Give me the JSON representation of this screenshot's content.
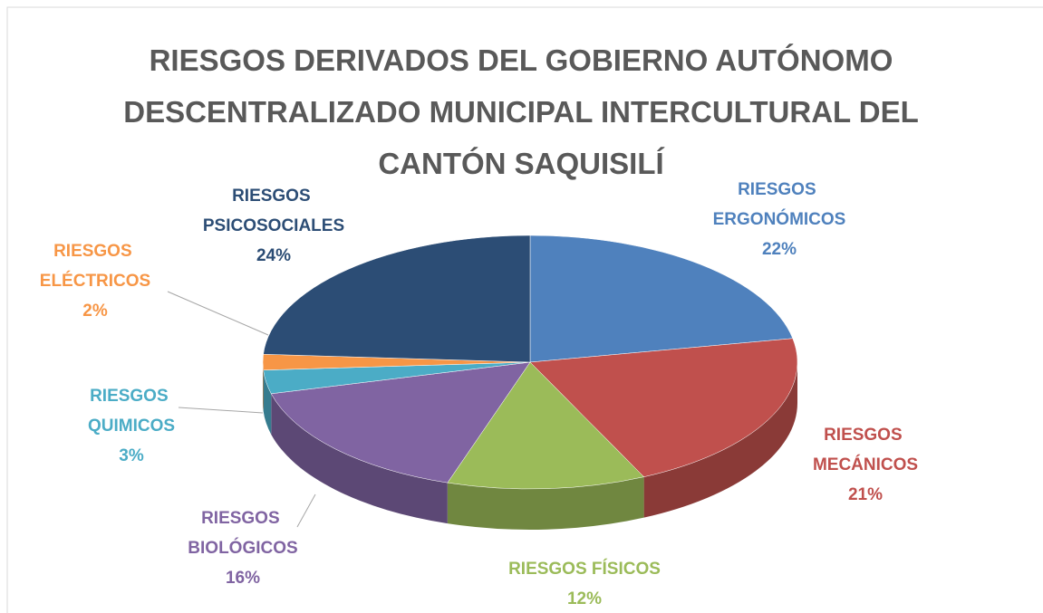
{
  "chart_data": {
    "type": "pie",
    "title": "RIESGOS DERIVADOS DEL GOBIERNO AUTÓNOMO DESCENTRALIZADO MUNICIPAL INTERCULTURAL DEL CANTÓN SAQUISILÍ",
    "categories": [
      "RIESGOS ERGONÓMICOS",
      "RIESGOS MECÁNICOS",
      "RIESGOS FÍSICOS",
      "RIESGOS BIOLÓGICOS",
      "RIESGOS QUIMICOS",
      "RIESGOS ELÉCTRICOS",
      "RIESGOS PSICOSOCIALES"
    ],
    "values": [
      22,
      21,
      12,
      16,
      3,
      2,
      24
    ],
    "value_labels": [
      "22%",
      "21%",
      "12%",
      "16%",
      "3%",
      "2%",
      "24%"
    ],
    "colors": [
      "#4f81bd",
      "#c0504d",
      "#9bbb59",
      "#8064a2",
      "#4bacc6",
      "#f79646",
      "#2c4d75"
    ]
  }
}
